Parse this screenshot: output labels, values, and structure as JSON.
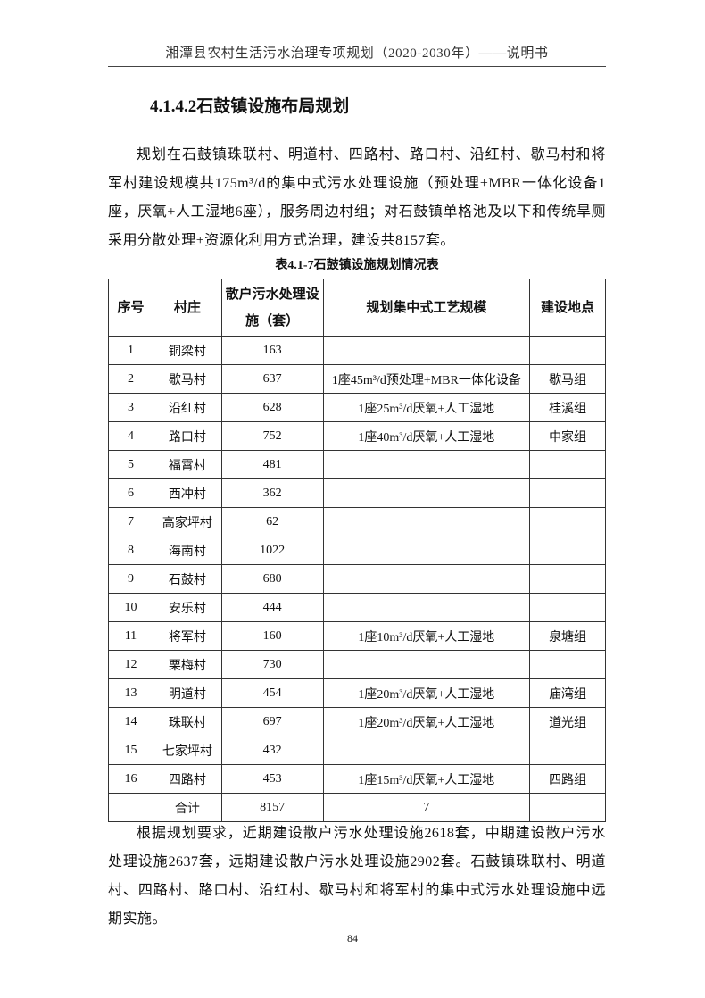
{
  "header": {
    "title": "湘潭县农村生活污水治理专项规划（2020-2030年）——说明书"
  },
  "section": {
    "heading": "4.1.4.2石鼓镇设施布局规划"
  },
  "paragraph1": "规划在石鼓镇珠联村、明道村、四路村、路口村、沿红村、歇马村和将军村建设规模共175m³/d的集中式污水处理设施（预处理+MBR一体化设备1座，厌氧+人工湿地6座），服务周边村组；对石鼓镇单格池及以下和传统旱厕采用分散处理+资源化利用方式治理，建设共8157套。",
  "table": {
    "caption": "表4.1-7石鼓镇设施规划情况表",
    "headers": [
      "序号",
      "村庄",
      "散户污水处理设施（套）",
      "规划集中式工艺规模",
      "建设地点"
    ],
    "rows": [
      [
        "1",
        "铜梁村",
        "163",
        "",
        ""
      ],
      [
        "2",
        "歇马村",
        "637",
        "1座45m³/d预处理+MBR一体化设备",
        "歇马组"
      ],
      [
        "3",
        "沿红村",
        "628",
        "1座25m³/d厌氧+人工湿地",
        "桂溪组"
      ],
      [
        "4",
        "路口村",
        "752",
        "1座40m³/d厌氧+人工湿地",
        "中家组"
      ],
      [
        "5",
        "福霄村",
        "481",
        "",
        ""
      ],
      [
        "6",
        "西冲村",
        "362",
        "",
        ""
      ],
      [
        "7",
        "高家坪村",
        "62",
        "",
        ""
      ],
      [
        "8",
        "海南村",
        "1022",
        "",
        ""
      ],
      [
        "9",
        "石鼓村",
        "680",
        "",
        ""
      ],
      [
        "10",
        "安乐村",
        "444",
        "",
        ""
      ],
      [
        "11",
        "将军村",
        "160",
        "1座10m³/d厌氧+人工湿地",
        "泉塘组"
      ],
      [
        "12",
        "栗梅村",
        "730",
        "",
        ""
      ],
      [
        "13",
        "明道村",
        "454",
        "1座20m³/d厌氧+人工湿地",
        "庙湾组"
      ],
      [
        "14",
        "珠联村",
        "697",
        "1座20m³/d厌氧+人工湿地",
        "道光组"
      ],
      [
        "15",
        "七家坪村",
        "432",
        "",
        ""
      ],
      [
        "16",
        "四路村",
        "453",
        "1座15m³/d厌氧+人工湿地",
        "四路组"
      ],
      [
        "",
        "合计",
        "8157",
        "7",
        ""
      ]
    ]
  },
  "paragraph2": "根据规划要求，近期建设散户污水处理设施2618套，中期建设散户污水处理设施2637套，远期建设散户污水处理设施2902套。石鼓镇珠联村、明道村、四路村、路口村、沿红村、歇马村和将军村的集中式污水处理设施中远期实施。",
  "page_number": "84"
}
